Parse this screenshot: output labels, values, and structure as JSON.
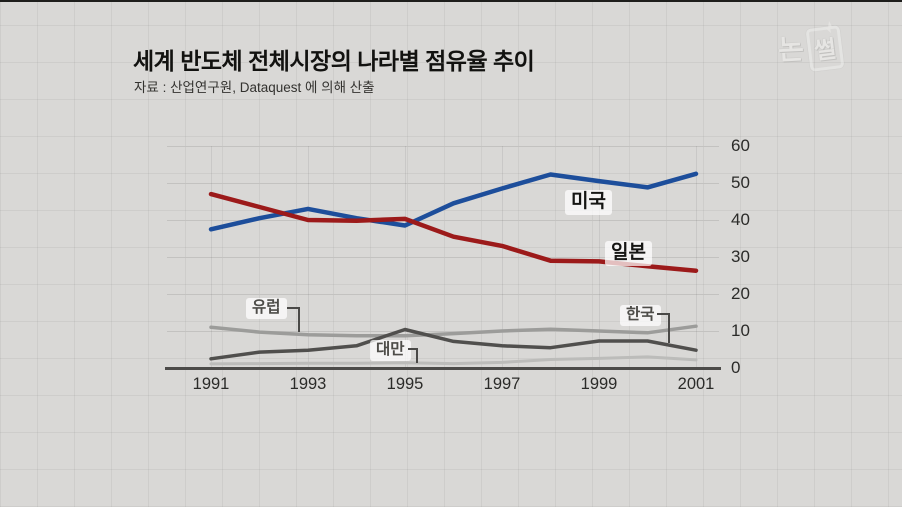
{
  "page": {
    "background_color": "#d9d8d6",
    "logo_text": "논썰",
    "logo_char_1": "논",
    "logo_char_2": "썰"
  },
  "header": {
    "title": "세계 반도체 전체시장의 나라별 점유율 추이",
    "source": "자료 : 산업연구원, Dataquest 에 의해 산출"
  },
  "chart_data": {
    "type": "line",
    "title": "세계 반도체 전체시장의 나라별 점유율 추이",
    "source": "자료 : 산업연구원, Dataquest 에 의해 산출",
    "x": [
      1991,
      1992,
      1993,
      1994,
      1995,
      1996,
      1997,
      1998,
      1999,
      2000,
      2001
    ],
    "x_tick_labels": [
      "1991",
      "1993",
      "1995",
      "1997",
      "1999",
      "2001"
    ],
    "y_ticks": [
      0,
      10,
      20,
      30,
      40,
      50,
      60
    ],
    "ylim": [
      0,
      60
    ],
    "grid": "horizontal",
    "legend_position": "inline-labels",
    "axis_color": "#4c4b49",
    "gridline_color": "#c3c2c0",
    "series": [
      {
        "id": "usa",
        "name": "미국",
        "color": "#1d4e9b",
        "width": 4.5,
        "values": [
          37.5,
          40.5,
          43,
          40.5,
          38.5,
          44.5,
          48.5,
          52.3,
          50.5,
          48.8,
          52.5
        ]
      },
      {
        "id": "japan",
        "name": "일본",
        "color": "#9c1a1a",
        "width": 4.5,
        "values": [
          47,
          43.5,
          40,
          39.8,
          40.3,
          35.5,
          33,
          29,
          28.8,
          27.5,
          26.3
        ]
      },
      {
        "id": "europe",
        "name": "유럽",
        "color": "#9c9c9a",
        "width": 3.5,
        "values": [
          11,
          9.7,
          9,
          8.7,
          8.7,
          9.3,
          10,
          10.5,
          10,
          9.5,
          11.3
        ]
      },
      {
        "id": "korea",
        "name": "한국",
        "color": "#504f4d",
        "width": 3.5,
        "values": [
          2.5,
          4.3,
          4.8,
          6,
          10.4,
          7.2,
          6,
          5.5,
          7.3,
          7.3,
          4.8
        ]
      },
      {
        "id": "taiwan",
        "name": "대만",
        "color": "#bcbcba",
        "width": 3,
        "values": [
          1.1,
          1.2,
          1.3,
          1.3,
          1.4,
          1.2,
          1.5,
          2.3,
          2.6,
          3,
          2.2
        ]
      }
    ]
  }
}
